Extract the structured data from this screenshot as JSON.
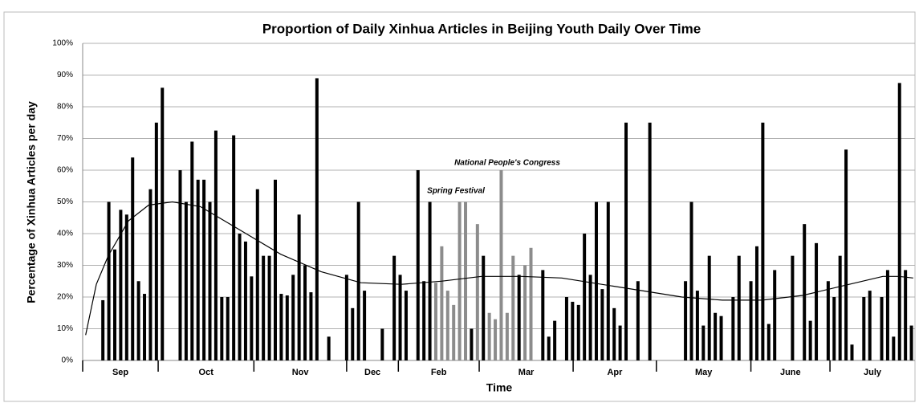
{
  "chart_data": {
    "type": "bar",
    "title": "Proportion of Daily Xinhua Articles in Beijing Youth Daily Over Time",
    "y_label": "Percentage of Xinhua  Articles per day",
    "x_label": "Time",
    "xlim": [
      -3.4,
      136.6
    ],
    "xticks": [
      -3.4,
      9.3,
      25.4,
      41.0,
      49.7,
      63.3,
      79.1,
      93.1,
      109.0,
      122.3
    ],
    "months": [
      "Sep",
      "Oct",
      "Nov",
      "Dec",
      "Feb",
      "Mar",
      "Apr",
      "May",
      "June",
      "July"
    ],
    "ylim": [
      0,
      100
    ],
    "yticks": [
      {
        "value": 0,
        "label": "0%"
      },
      {
        "value": 10,
        "label": "10%"
      },
      {
        "value": 20,
        "label": "20%"
      },
      {
        "value": 30,
        "label": "30%"
      },
      {
        "value": 40,
        "label": "40%"
      },
      {
        "value": 50,
        "label": "50%"
      },
      {
        "value": 60,
        "label": "60%"
      },
      {
        "value": 70,
        "label": "70%"
      },
      {
        "value": 80,
        "label": "80%"
      },
      {
        "value": 90,
        "label": "90%"
      },
      {
        "value": 100,
        "label": "100%"
      }
    ],
    "grid": true,
    "series": [
      {
        "color": "#000000",
        "x": [
          0,
          1,
          2,
          3,
          4,
          5,
          6,
          7,
          8,
          9,
          10,
          13,
          14,
          15,
          16,
          17,
          18,
          19,
          20,
          21,
          22,
          23,
          24,
          25,
          26,
          27,
          28,
          29,
          30,
          31,
          32,
          33,
          34,
          35,
          36,
          38,
          41,
          42,
          43,
          44,
          47,
          49,
          50,
          51,
          53,
          54,
          55,
          62,
          64,
          70,
          74,
          75,
          76,
          78,
          79,
          80,
          81,
          82,
          83,
          84,
          85,
          86,
          87,
          88,
          90,
          92,
          98,
          99,
          100,
          101,
          102,
          103,
          104,
          106,
          107,
          109,
          110,
          111,
          112,
          113,
          116,
          118,
          119,
          120,
          122,
          123,
          124,
          125,
          126,
          128,
          129,
          131,
          132,
          133,
          134,
          135,
          136
        ],
        "values": [
          19,
          50,
          35,
          47.5,
          46,
          64,
          25,
          21,
          54,
          75,
          86,
          60,
          50,
          69,
          57,
          57,
          50,
          72.5,
          20,
          20,
          71,
          40,
          37.5,
          26.5,
          54,
          33,
          33,
          57,
          21,
          20.5,
          27,
          46,
          30,
          21.5,
          89,
          7.5,
          27,
          16.5,
          50,
          22,
          10,
          33,
          27,
          22,
          60,
          25,
          50,
          10,
          33,
          27,
          28.5,
          7.5,
          12.5,
          20,
          18.5,
          17.5,
          40,
          27,
          50,
          22.5,
          50,
          16.5,
          11,
          75,
          25,
          75,
          25,
          50,
          22,
          11,
          33,
          15,
          14,
          20,
          33,
          25,
          36,
          75,
          11.5,
          28.5,
          33,
          43,
          12.5,
          37,
          25,
          20,
          33,
          66.5,
          5,
          20,
          22,
          20,
          28.5,
          7.5,
          87.5,
          28.5,
          11
        ]
      },
      {
        "color": "#8c8c8c",
        "x": [
          56,
          57,
          58,
          59,
          60,
          61,
          63,
          65,
          66,
          67,
          68,
          69,
          71,
          72
        ],
        "values": [
          24.5,
          36,
          22,
          17.5,
          50,
          50,
          43,
          15,
          13,
          60,
          15,
          33,
          30,
          35.5
        ]
      }
    ],
    "trend": {
      "color": "#000000",
      "x": [
        -2.9,
        -1.1,
        0.9,
        4.3,
        7.7,
        11.7,
        16.4,
        23.2,
        29.9,
        36.7,
        43.4,
        50.2,
        56.9,
        63.7,
        70.4,
        77.2,
        83.9,
        90.7,
        97.4,
        104.2,
        110.9,
        117.7,
        124.4,
        131.2,
        133.9,
        136.3
      ],
      "values": [
        8,
        24,
        33,
        44,
        49,
        50,
        48.5,
        41,
        33.5,
        28,
        24.5,
        24,
        25,
        26.5,
        26.5,
        26,
        24,
        22,
        20,
        19,
        19,
        20.5,
        23.5,
        26.5,
        26.5,
        26
      ]
    },
    "annotations": [
      "Spring Festival",
      "National People's Congress"
    ]
  }
}
